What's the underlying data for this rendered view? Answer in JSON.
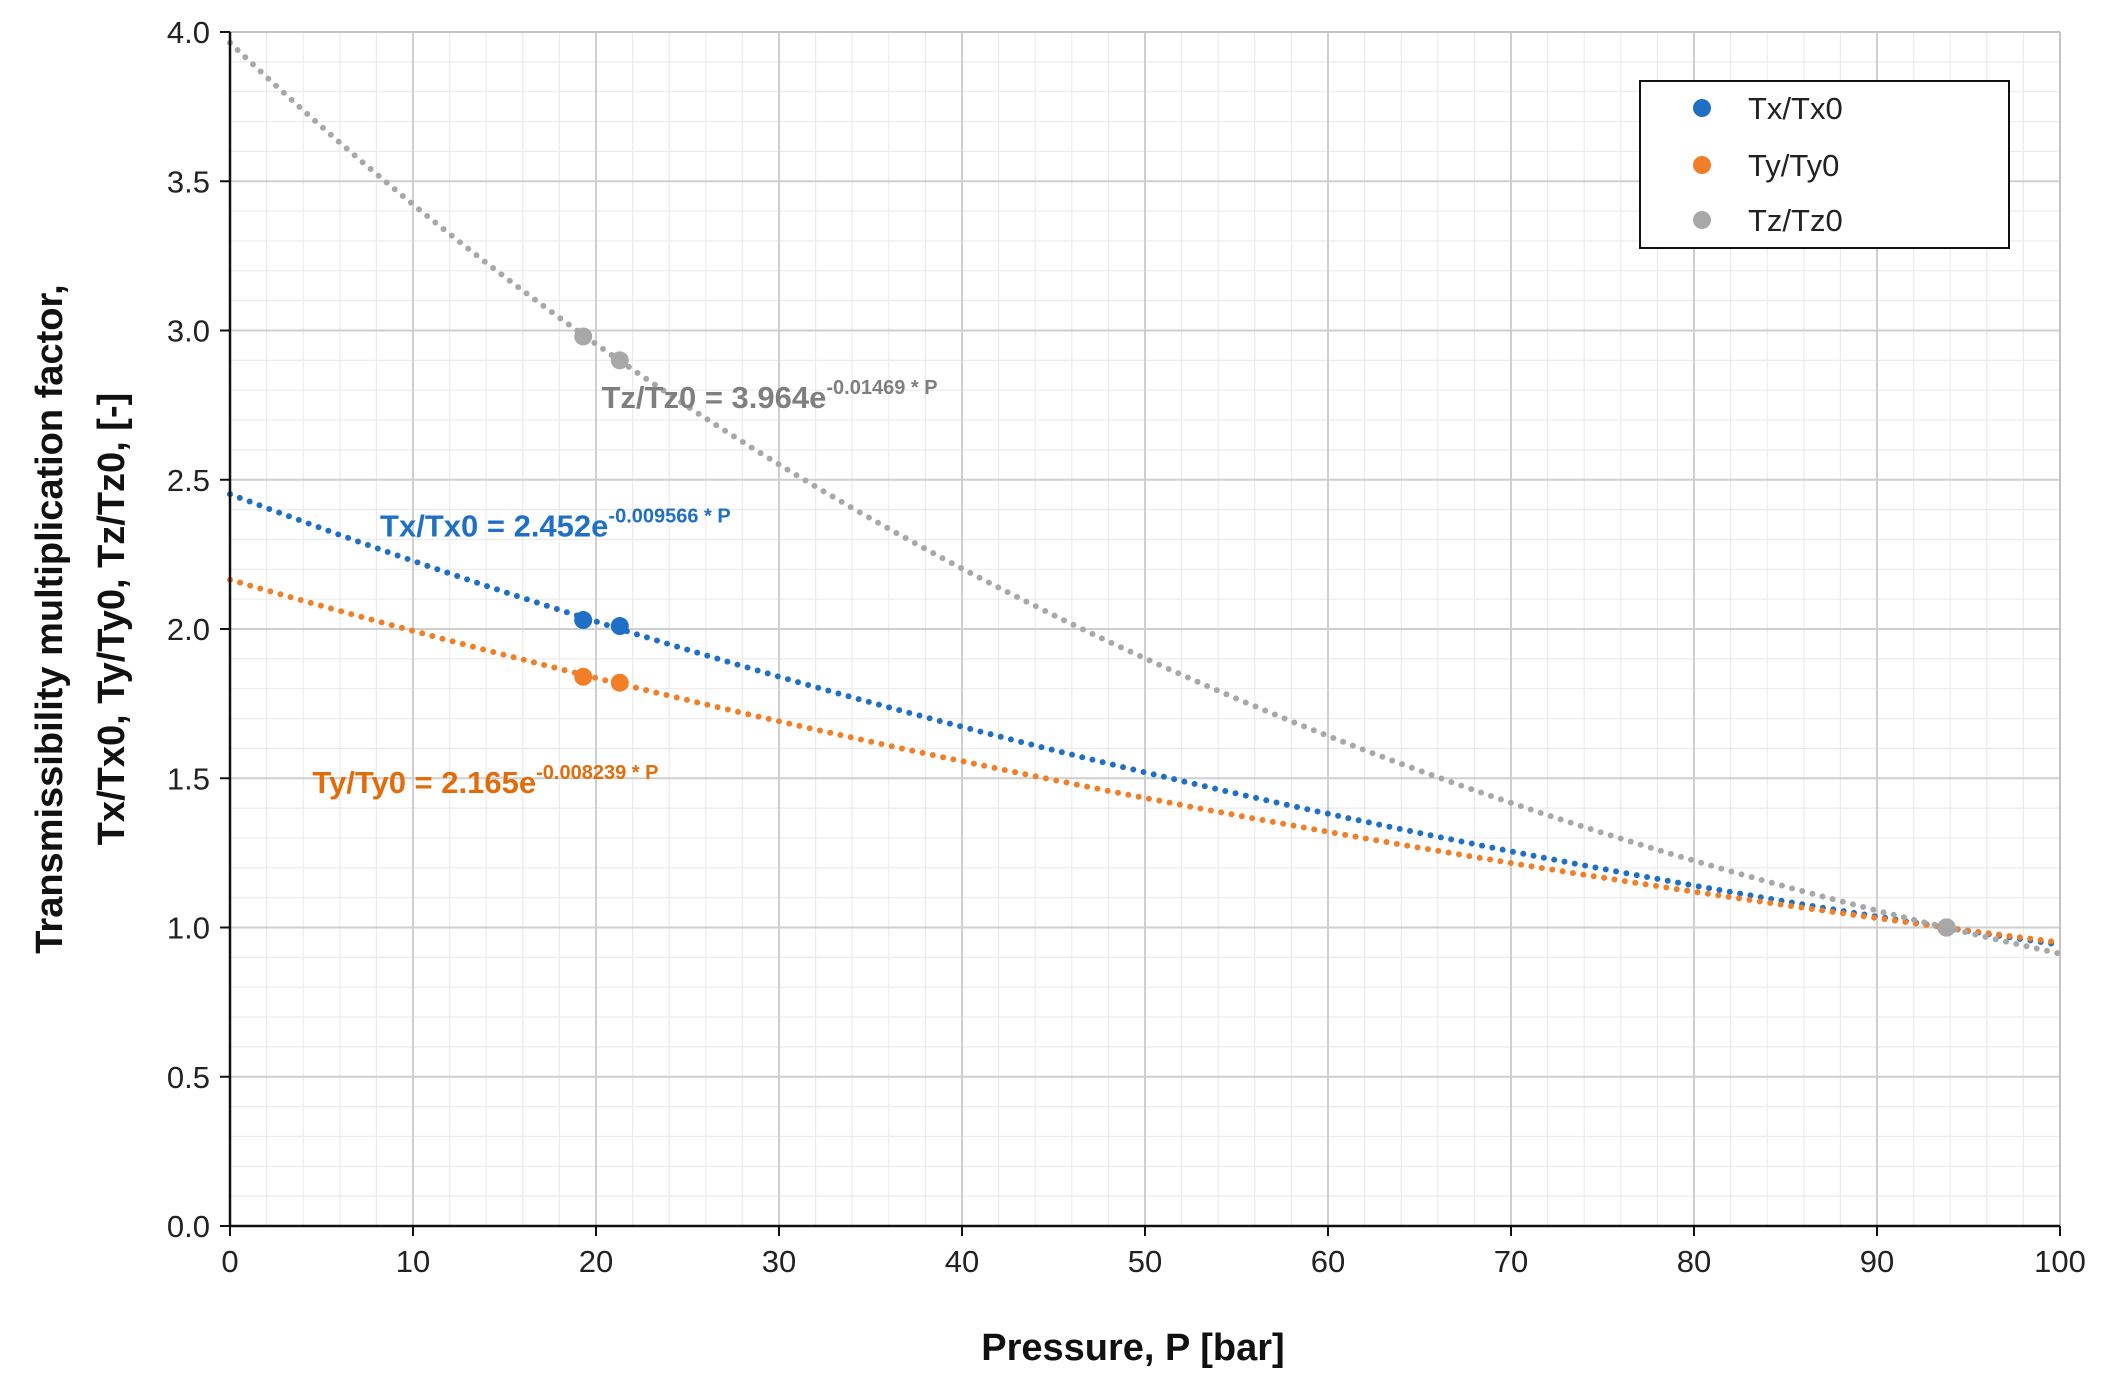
{
  "chart_data": {
    "type": "scatter",
    "title": "",
    "xlabel": "Pressure, P [bar]",
    "ylabel_lines": [
      "Transmissibility multiplication factor,",
      "Tx/Tx0, Ty/Ty0,  Tz/Tz0,   [-]"
    ],
    "xlim": [
      0,
      100
    ],
    "ylim": [
      0,
      4.0
    ],
    "x_ticks": [
      0,
      10,
      20,
      30,
      40,
      50,
      60,
      70,
      80,
      90,
      100
    ],
    "x_tick_labels": [
      "0",
      "10",
      "20",
      "30",
      "40",
      "50",
      "60",
      "70",
      "80",
      "90",
      "100"
    ],
    "y_ticks": [
      0,
      0.5,
      1.0,
      1.5,
      2.0,
      2.5,
      3.0,
      3.5,
      4.0
    ],
    "y_tick_labels": [
      "0.0",
      "0.5",
      "1.0",
      "1.5",
      "2.0",
      "2.5",
      "3.0",
      "3.5",
      "4.0"
    ],
    "grid": true,
    "minor_grid": true,
    "legend_position": "top-right",
    "series": [
      {
        "name": "Tx/Tx0",
        "color": "#1F6FC5",
        "points": [
          {
            "x": 19.3,
            "y": 2.03
          },
          {
            "x": 21.3,
            "y": 2.01
          }
        ],
        "trend": {
          "type": "exponential",
          "a": 2.452,
          "b": -0.009566
        },
        "equation": {
          "main": "Tx/Tx0 = 2.452e",
          "exponent": "-0.009566 * P",
          "anchor_x": 8.2,
          "anchor_y": 2.35
        }
      },
      {
        "name": "Ty/Ty0",
        "color": "#F07F28",
        "label_color": "#E36C0A",
        "points": [
          {
            "x": 19.3,
            "y": 1.84
          },
          {
            "x": 21.3,
            "y": 1.82
          }
        ],
        "trend": {
          "type": "exponential",
          "a": 2.165,
          "b": -0.008239
        },
        "equation": {
          "main": "Ty/Ty0 = 2.165e",
          "exponent": "-0.008239 * P",
          "anchor_x": 4.5,
          "anchor_y": 1.49
        }
      },
      {
        "name": "Tz/Tz0",
        "color": "#A8A8A8",
        "label_color": "#7F7F7F",
        "points": [
          {
            "x": 19.3,
            "y": 2.98
          },
          {
            "x": 21.3,
            "y": 2.9
          },
          {
            "x": 93.8,
            "y": 1.0
          }
        ],
        "trend": {
          "type": "exponential",
          "a": 3.964,
          "b": -0.01469
        },
        "equation": {
          "main": "Tz/Tz0 = 3.964e",
          "exponent": "-0.01469 * P",
          "anchor_x": 20.3,
          "anchor_y": 2.78
        }
      }
    ],
    "extra_points": [
      {
        "x": 93.8,
        "y": 1.0,
        "color": "#F07F28"
      },
      {
        "x": 93.8,
        "y": 1.0,
        "color": "#1F6FC5"
      }
    ]
  }
}
